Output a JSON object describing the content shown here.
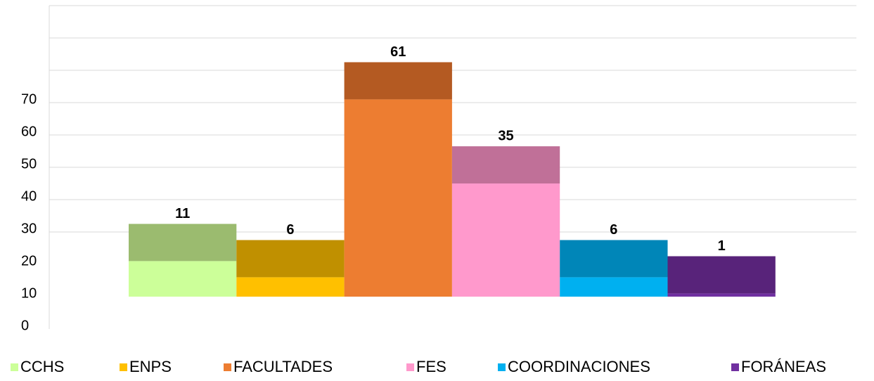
{
  "chart_data": {
    "type": "bar",
    "categories": [
      "CCHS",
      "ENPS",
      "FACULTADES",
      "FES",
      "COORDINACIONES",
      "FORÁNEAS"
    ],
    "values": [
      11,
      6,
      61,
      35,
      6,
      1
    ],
    "cap_values": [
      11.5,
      11.5,
      11.5,
      11.5,
      11.5,
      11.5
    ],
    "baseline": 10,
    "colors": [
      "#ccff99",
      "#ffc000",
      "#ed7d31",
      "#ff99cc",
      "#00b0f0",
      "#7030a0"
    ],
    "cap_colors": [
      "#9bbb6f",
      "#c09000",
      "#b45a22",
      "#c07098",
      "#0086b8",
      "#58237a"
    ],
    "ylim": [
      0,
      100
    ],
    "yticks": [
      0,
      10,
      20,
      30,
      40,
      50,
      60,
      70
    ],
    "gridlines": [
      30,
      40,
      50,
      60,
      70,
      80,
      90,
      100
    ],
    "grid": true,
    "legend": "bottom"
  }
}
